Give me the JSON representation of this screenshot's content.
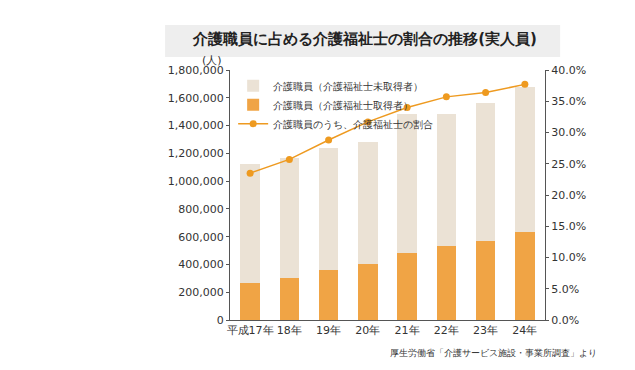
{
  "chart_data": {
    "type": "bar",
    "title": "介護職員に占める介護福祉士の割合の推移(実人員)",
    "ylabel": "(人)",
    "annotations": [
      "厚生労働省「介護サービス施設・事業所調査」より"
    ],
    "categories": [
      "平成17年",
      "18年",
      "19年",
      "20年",
      "21年",
      "22年",
      "23年",
      "24年"
    ],
    "stacked": true,
    "grid": false,
    "legend": "upper left",
    "data_labels": false,
    "ylim": [
      0,
      1800000
    ],
    "yticks": [
      0,
      {
        "value": 200000,
        "label": "200,000"
      },
      {
        "value": 400000,
        "label": "400,000"
      },
      {
        "value": 600000,
        "label": "600,000"
      },
      {
        "value": 800000,
        "label": "800,000"
      },
      {
        "value": 1000000,
        "label": "1,000,000"
      },
      {
        "value": 1200000,
        "label": "1,200,000"
      },
      {
        "value": 1400000,
        "label": "1,400,000"
      },
      {
        "value": 1600000,
        "label": "1,600,000"
      },
      {
        "value": 1800000,
        "label": "1,800,000"
      }
    ],
    "y2lim": [
      0,
      40
    ],
    "y2ticks": [
      {
        "value": 0,
        "label": "0.0%"
      },
      {
        "value": 5,
        "label": "5.0%"
      },
      {
        "value": 10,
        "label": "10.0%"
      },
      {
        "value": 15,
        "label": "15.0%"
      },
      {
        "value": 20,
        "label": "20.0%"
      },
      {
        "value": 25,
        "label": "25.0%"
      },
      {
        "value": 30,
        "label": "30.0%"
      },
      {
        "value": 35,
        "label": "35.0%"
      },
      {
        "value": 40,
        "label": "40.0%"
      }
    ],
    "series": [
      {
        "name": "介護職員（介護福祉士未取得者）",
        "type": "bar",
        "color": "#ebe2d5",
        "values": [
          860000,
          870000,
          880000,
          875000,
          1000000,
          950000,
          990000,
          1045000
        ]
      },
      {
        "name": "介護職員（介護福祉士取得者）",
        "type": "bar",
        "color": "#f0a445",
        "values": [
          265000,
          300000,
          360000,
          405000,
          480000,
          530000,
          570000,
          635000
        ]
      },
      {
        "name": "介護職員のうち、介護福祉士の割合",
        "type": "line",
        "axis": "y2",
        "color": "#ee9a20",
        "marker": "circle",
        "line_style": "solid",
        "values": [
          23.5,
          25.7,
          28.8,
          31.7,
          34.0,
          35.7,
          36.4,
          37.7
        ]
      }
    ]
  }
}
